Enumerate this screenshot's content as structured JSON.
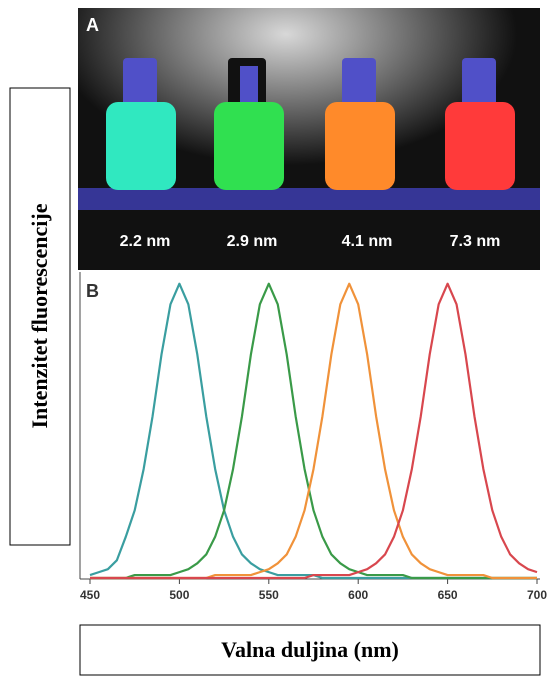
{
  "photo": {
    "label": "A",
    "captions": [
      "2.2 nm",
      "2.9 nm",
      "4.1 nm",
      "7.3 nm"
    ]
  },
  "chart_data": {
    "type": "line",
    "panel_label": "B",
    "xlabel": "Valna duljina (nm)",
    "ylabel": "Intenzitet fluorescencije",
    "xlim": [
      450,
      700
    ],
    "xticks": [
      450,
      500,
      550,
      600,
      650,
      700
    ],
    "ylim": [
      0,
      1.05
    ],
    "x": [
      450,
      455,
      460,
      465,
      470,
      475,
      480,
      485,
      490,
      495,
      500,
      505,
      510,
      515,
      520,
      525,
      530,
      535,
      540,
      545,
      550,
      555,
      560,
      565,
      570,
      575,
      580,
      585,
      590,
      595,
      600,
      605,
      610,
      615,
      620,
      625,
      630,
      635,
      640,
      645,
      650,
      655,
      660,
      665,
      670,
      675,
      680,
      685,
      690,
      695,
      700
    ],
    "series": [
      {
        "name": "2.2 nm",
        "color": "#3a9ea0",
        "values": [
          0.01,
          0.02,
          0.03,
          0.06,
          0.14,
          0.23,
          0.37,
          0.55,
          0.76,
          0.93,
          1,
          0.93,
          0.76,
          0.55,
          0.37,
          0.23,
          0.14,
          0.08,
          0.05,
          0.03,
          0.02,
          0.01,
          0.01,
          0.01,
          0.01,
          0.01,
          0,
          0,
          0,
          0,
          0,
          0,
          0,
          0,
          0,
          0,
          0,
          0,
          0,
          0,
          0,
          0,
          0,
          0,
          0,
          0,
          0,
          0,
          0,
          0,
          0
        ]
      },
      {
        "name": "2.9 nm",
        "color": "#3a9a48",
        "values": [
          0,
          0,
          0,
          0,
          0,
          0.01,
          0.01,
          0.01,
          0.01,
          0.01,
          0.02,
          0.03,
          0.05,
          0.08,
          0.14,
          0.23,
          0.37,
          0.55,
          0.76,
          0.93,
          1,
          0.93,
          0.76,
          0.55,
          0.37,
          0.23,
          0.14,
          0.08,
          0.05,
          0.03,
          0.02,
          0.01,
          0.01,
          0.01,
          0.01,
          0.01,
          0,
          0,
          0,
          0,
          0,
          0,
          0,
          0,
          0,
          0,
          0,
          0,
          0,
          0,
          0
        ]
      },
      {
        "name": "4.1 nm",
        "color": "#f0923a",
        "values": [
          0,
          0,
          0,
          0,
          0,
          0,
          0,
          0,
          0,
          0,
          0,
          0,
          0,
          0,
          0.01,
          0.01,
          0.01,
          0.01,
          0.01,
          0.02,
          0.03,
          0.05,
          0.08,
          0.14,
          0.23,
          0.37,
          0.55,
          0.76,
          0.93,
          1,
          0.93,
          0.76,
          0.55,
          0.37,
          0.23,
          0.14,
          0.08,
          0.05,
          0.03,
          0.02,
          0.01,
          0.01,
          0.01,
          0.01,
          0.01,
          0,
          0,
          0,
          0,
          0,
          0
        ]
      },
      {
        "name": "7.3 nm",
        "color": "#d8474e",
        "values": [
          0,
          0,
          0,
          0,
          0,
          0,
          0,
          0,
          0,
          0,
          0,
          0,
          0,
          0,
          0,
          0,
          0,
          0,
          0,
          0,
          0,
          0,
          0,
          0,
          0,
          0.01,
          0.01,
          0.01,
          0.01,
          0.01,
          0.02,
          0.03,
          0.05,
          0.08,
          0.14,
          0.23,
          0.37,
          0.55,
          0.76,
          0.93,
          1,
          0.93,
          0.76,
          0.55,
          0.37,
          0.23,
          0.14,
          0.08,
          0.05,
          0.03,
          0.02
        ]
      }
    ]
  }
}
